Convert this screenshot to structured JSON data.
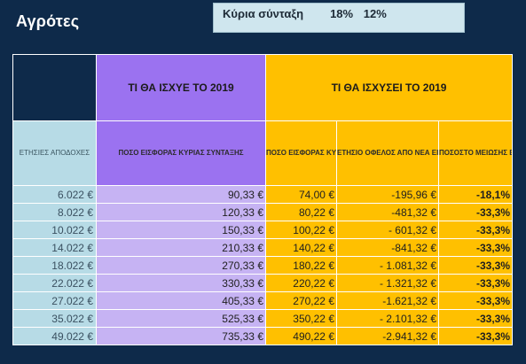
{
  "slide": {
    "title": "Αγρότες"
  },
  "info": {
    "icon": "",
    "label": "Κύρια σύνταξη",
    "before_pct": "18%",
    "boxes": "",
    "after_pct": "12%"
  },
  "table": {
    "group_2019": "ΤΙ ΘΑ ΙΣΧΥΕ ΤΟ 2019",
    "group_new": "ΤΙ ΘΑ ΙΣΧΥΣΕΙ ΤΟ 2019",
    "headers": {
      "income": "ΕΤΗΣΙΕΣ ΑΠΟΔΟΧΕΣ",
      "old": "ΠΟΣΟ ΕΙΣΦΟΡΑΣ ΚΥΡΙΑΣ ΣΥΝΤΑΞΗΣ",
      "new": "ΠΟΣΟ ΕΙΣΦΟΡΑΣ ΚΥΡΙΑΣ ΣΥΝΤΑΞΗΣ",
      "benefit": "ΕΤΗΣΙΟ ΟΦΕΛΟΣ ΑΠΟ ΝΕΑ ΕΙΣΦΟΡΑ ΚΥΡΙΑ ΣΥΝΤΑΞΗ",
      "pct": "ΠΟΣΟΣΤΟ ΜΕΙΩΣΗΣ ΕΙΣΦΟΡΑΣ ΚΥΡΙΑΣ ΣΥΝΤΑΞΗΣ"
    },
    "rows": [
      {
        "income": "6.022 €",
        "old": "90,33 €",
        "new": "74,00 €",
        "benefit": "-195,96 €",
        "pct": "-18,1%"
      },
      {
        "income": "8.022 €",
        "old": "120,33 €",
        "new": "80,22 €",
        "benefit": "-481,32 €",
        "pct": "-33,3%"
      },
      {
        "income": "10.022 €",
        "old": "150,33 €",
        "new": "100,22 €",
        "benefit": "- 601,32 €",
        "pct": "-33,3%"
      },
      {
        "income": "14.022 €",
        "old": "210,33 €",
        "new": "140,22 €",
        "benefit": "-841,32 €",
        "pct": "-33,3%"
      },
      {
        "income": "18.022 €",
        "old": "270,33 €",
        "new": "180,22 €",
        "benefit": "- 1.081,32 €",
        "pct": "-33,3%"
      },
      {
        "income": "22.022 €",
        "old": "330,33 €",
        "new": "220,22 €",
        "benefit": "- 1.321,32 €",
        "pct": "-33,3%"
      },
      {
        "income": "27.022 €",
        "old": "405,33 €",
        "new": "270,22 €",
        "benefit": "-1.621,32 €",
        "pct": "-33,3%"
      },
      {
        "income": "35.022 €",
        "old": "525,33 €",
        "new": "350,22 €",
        "benefit": "-  2.101,32 €",
        "pct": "-33,3%"
      },
      {
        "income": "49.022 €",
        "old": "735,33 €",
        "new": "490,22 €",
        "benefit": "-2.941,32 €",
        "pct": "-33,3%"
      }
    ]
  }
}
